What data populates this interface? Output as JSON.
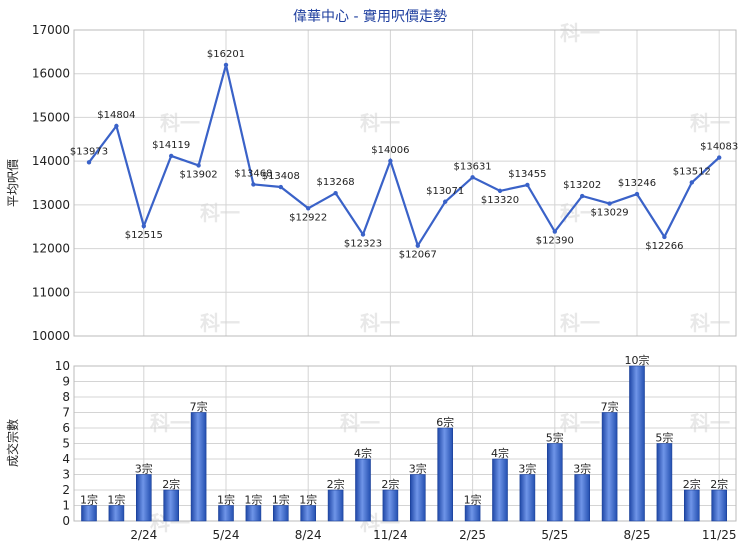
{
  "chart_data": [
    {
      "type": "line",
      "title": "偉華中心 - 實用呎價走勢",
      "ylabel": "平均呎價",
      "ylim": [
        10000,
        17000
      ],
      "yticks": [
        10000,
        11000,
        12000,
        13000,
        14000,
        15000,
        16000,
        17000
      ],
      "grid": true,
      "series": [
        {
          "values": [
            13973,
            14804,
            12515,
            14119,
            13902,
            16201,
            13468,
            13408,
            12922,
            13268,
            12323,
            14006,
            12067,
            13071,
            13631,
            13320,
            13455,
            12390,
            13202,
            13029,
            13246,
            12266,
            13512,
            14083
          ],
          "labels": [
            "$13973",
            "$14804",
            "$12515",
            "$14119",
            "$13902",
            "$16201",
            "$13468",
            "$13408",
            "$12922",
            "$13268",
            "$12323",
            "$14006",
            "$12067",
            "$13071",
            "$13631",
            "$13320",
            "$13455",
            "$12390",
            "$13202",
            "$13029",
            "$13246",
            "$12266",
            "$13512",
            "$14083"
          ],
          "color": "#3a62c8"
        }
      ]
    },
    {
      "type": "bar",
      "ylabel": "成交宗數",
      "ylim": [
        0,
        10
      ],
      "yticks": [
        0,
        1,
        2,
        3,
        4,
        5,
        6,
        7,
        8,
        9,
        10
      ],
      "grid": true,
      "values": [
        1,
        1,
        3,
        2,
        7,
        1,
        1,
        1,
        1,
        2,
        4,
        2,
        3,
        6,
        1,
        4,
        3,
        5,
        3,
        7,
        10,
        5,
        2,
        2
      ],
      "labels": [
        "1宗",
        "1宗",
        "3宗",
        "2宗",
        "7宗",
        "1宗",
        "1宗",
        "1宗",
        "1宗",
        "2宗",
        "4宗",
        "2宗",
        "3宗",
        "6宗",
        "1宗",
        "4宗",
        "3宗",
        "5宗",
        "3宗",
        "7宗",
        "10宗",
        "5宗",
        "2宗",
        "2宗"
      ],
      "color": "#2f5bbf",
      "xtick_labels": [
        {
          "index": 2,
          "text": "2/24"
        },
        {
          "index": 5,
          "text": "5/24"
        },
        {
          "index": 8,
          "text": "8/24"
        },
        {
          "index": 11,
          "text": "11/24"
        },
        {
          "index": 14,
          "text": "2/25"
        },
        {
          "index": 17,
          "text": "5/25"
        },
        {
          "index": 20,
          "text": "8/25"
        },
        {
          "index": 23,
          "text": "11/25"
        }
      ]
    }
  ],
  "watermark": "科一"
}
